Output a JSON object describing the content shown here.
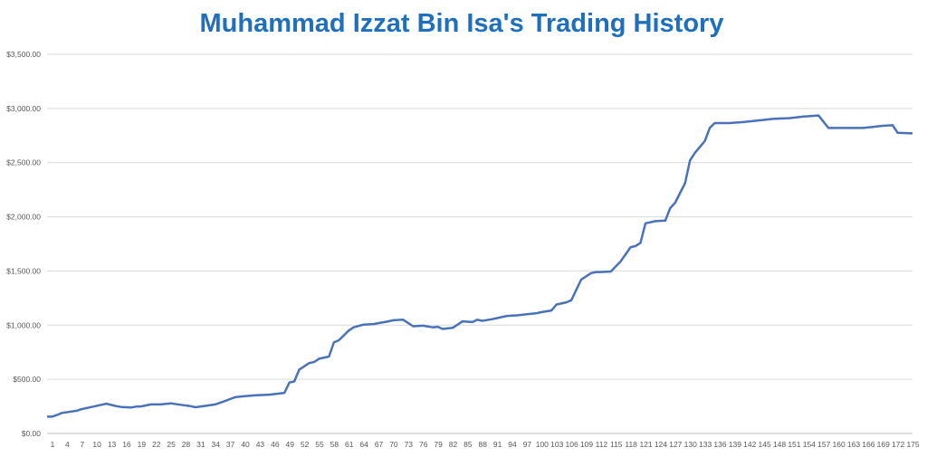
{
  "chart_data": {
    "type": "line",
    "title": "Muhammad Izzat Bin Isa's Trading History",
    "xlabel": "",
    "ylabel": "",
    "ylim": [
      0,
      3500
    ],
    "xlim": [
      1,
      176
    ],
    "grid": true,
    "legend": "none",
    "y_tick_values": [
      0,
      500,
      1000,
      1500,
      2000,
      2500,
      3000,
      3500
    ],
    "y_tick_labels": [
      "$0.00",
      "$500.00",
      "$1,000.00",
      "$1,500.00",
      "$2,000.00",
      "$2,500.00",
      "$3,000.00",
      "$3,500.00"
    ],
    "x_tick_labels": [
      "1",
      "4",
      "7",
      "10",
      "13",
      "16",
      "19",
      "22",
      "25",
      "28",
      "31",
      "34",
      "37",
      "40",
      "43",
      "46",
      "49",
      "52",
      "55",
      "58",
      "61",
      "64",
      "67",
      "70",
      "73",
      "76",
      "79",
      "82",
      "85",
      "88",
      "91",
      "94",
      "97",
      "100",
      "103",
      "106",
      "109",
      "112",
      "115",
      "118",
      "121",
      "124",
      "127",
      "130",
      "133",
      "136",
      "139",
      "142",
      "145",
      "148",
      "151",
      "154",
      "157",
      "160",
      "163",
      "166",
      "169",
      "172",
      "175"
    ],
    "line_color": "#4a72b8",
    "series": [
      {
        "points": [
          [
            1,
            155
          ],
          [
            2,
            155
          ],
          [
            3,
            170
          ],
          [
            4,
            190
          ],
          [
            7,
            210
          ],
          [
            8,
            225
          ],
          [
            10,
            245
          ],
          [
            12,
            265
          ],
          [
            13,
            275
          ],
          [
            15,
            252
          ],
          [
            16,
            245
          ],
          [
            18,
            240
          ],
          [
            19,
            248
          ],
          [
            20,
            250
          ],
          [
            22,
            268
          ],
          [
            24,
            268
          ],
          [
            26,
            278
          ],
          [
            28,
            265
          ],
          [
            30,
            252
          ],
          [
            31,
            242
          ],
          [
            33,
            255
          ],
          [
            35,
            268
          ],
          [
            37,
            300
          ],
          [
            39,
            335
          ],
          [
            41,
            345
          ],
          [
            43,
            352
          ],
          [
            46,
            358
          ],
          [
            49,
            375
          ],
          [
            50,
            470
          ],
          [
            51,
            480
          ],
          [
            52,
            590
          ],
          [
            54,
            650
          ],
          [
            55,
            660
          ],
          [
            56,
            690
          ],
          [
            58,
            710
          ],
          [
            59,
            840
          ],
          [
            60,
            860
          ],
          [
            62,
            950
          ],
          [
            63,
            980
          ],
          [
            65,
            1005
          ],
          [
            67,
            1010
          ],
          [
            70,
            1035
          ],
          [
            71,
            1045
          ],
          [
            73,
            1050
          ],
          [
            75,
            990
          ],
          [
            77,
            995
          ],
          [
            79,
            980
          ],
          [
            80,
            985
          ],
          [
            81,
            965
          ],
          [
            83,
            975
          ],
          [
            85,
            1035
          ],
          [
            87,
            1028
          ],
          [
            88,
            1050
          ],
          [
            89,
            1040
          ],
          [
            91,
            1055
          ],
          [
            92,
            1065
          ],
          [
            94,
            1085
          ],
          [
            96,
            1090
          ],
          [
            98,
            1100
          ],
          [
            100,
            1110
          ],
          [
            101,
            1120
          ],
          [
            103,
            1135
          ],
          [
            104,
            1190
          ],
          [
            106,
            1210
          ],
          [
            107,
            1230
          ],
          [
            109,
            1420
          ],
          [
            111,
            1480
          ],
          [
            112,
            1490
          ],
          [
            113,
            1490
          ],
          [
            115,
            1495
          ],
          [
            117,
            1590
          ],
          [
            119,
            1720
          ],
          [
            120,
            1730
          ],
          [
            121,
            1760
          ],
          [
            122,
            1940
          ],
          [
            124,
            1960
          ],
          [
            126,
            1965
          ],
          [
            127,
            2080
          ],
          [
            128,
            2130
          ],
          [
            130,
            2310
          ],
          [
            131,
            2520
          ],
          [
            132,
            2590
          ],
          [
            134,
            2700
          ],
          [
            135,
            2820
          ],
          [
            136,
            2865
          ],
          [
            139,
            2865
          ],
          [
            142,
            2875
          ],
          [
            145,
            2890
          ],
          [
            148,
            2905
          ],
          [
            151,
            2910
          ],
          [
            154,
            2925
          ],
          [
            156,
            2932
          ],
          [
            157,
            2935
          ],
          [
            159,
            2820
          ],
          [
            166,
            2820
          ],
          [
            168,
            2830
          ],
          [
            170,
            2840
          ],
          [
            172,
            2845
          ],
          [
            173,
            2775
          ],
          [
            176,
            2770
          ]
        ]
      }
    ]
  }
}
